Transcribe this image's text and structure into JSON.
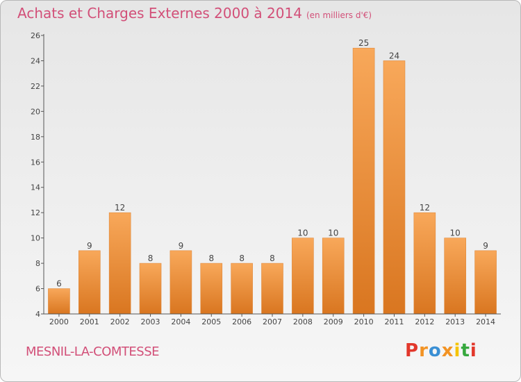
{
  "header": {
    "title": "Achats et Charges Externes 2000 à 2014",
    "unit": "(en milliers d'€)"
  },
  "footer": {
    "commune": "MESNIL-LA-COMTESSE"
  },
  "logo": {
    "text": "Proxiti",
    "colors": [
      "#e2372b",
      "#f29324",
      "#3a8fd4",
      "#f29324",
      "#f5c400",
      "#36a83e",
      "#e2372b"
    ]
  },
  "chart_data": {
    "type": "bar",
    "title": "Achats et Charges Externes 2000 à 2014",
    "subtitle": "(en milliers d'€)",
    "xlabel": "",
    "ylabel": "",
    "categories": [
      "2000",
      "2001",
      "2002",
      "2003",
      "2004",
      "2005",
      "2006",
      "2007",
      "2008",
      "2009",
      "2010",
      "2011",
      "2012",
      "2013",
      "2014"
    ],
    "values": [
      6,
      9,
      12,
      8,
      9,
      8,
      8,
      8,
      10,
      10,
      25,
      24,
      12,
      10,
      9
    ],
    "ylim": [
      4,
      26
    ],
    "yticks": [
      4,
      6,
      8,
      10,
      12,
      14,
      16,
      18,
      20,
      22,
      24,
      26
    ],
    "grid": false,
    "legend": "none",
    "colors": {
      "bar_top": "#f8a85a",
      "bar_bottom": "#d97620",
      "bar_edge": "#e08a3c",
      "axis": "#555555"
    }
  }
}
